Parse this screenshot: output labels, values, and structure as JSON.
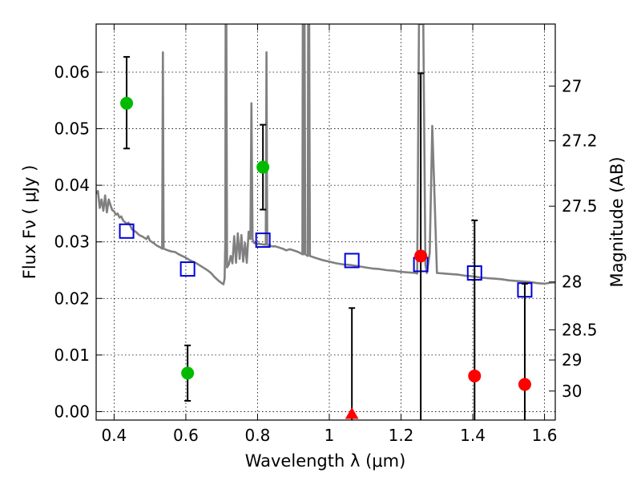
{
  "chart_data": {
    "type": "scatter",
    "xlabel": "Wavelength  λ (μm)",
    "ylabel": "Flux  Fν  ( μJy )",
    "y2label": "Magnitude (AB)",
    "xlim": [
      0.35,
      1.63
    ],
    "ylim": [
      -0.0015,
      0.0685
    ],
    "grid": true,
    "x_ticks": [
      {
        "value": 0.4,
        "label": "0.4"
      },
      {
        "value": 0.6,
        "label": "0.6"
      },
      {
        "value": 0.8,
        "label": "0.8"
      },
      {
        "value": 1.0,
        "label": "1"
      },
      {
        "value": 1.2,
        "label": "1.2"
      },
      {
        "value": 1.4,
        "label": "1.4"
      },
      {
        "value": 1.6,
        "label": "1.6"
      }
    ],
    "y_ticks": [
      {
        "value": 0.0,
        "label": "0.00"
      },
      {
        "value": 0.01,
        "label": "0.01"
      },
      {
        "value": 0.02,
        "label": "0.02"
      },
      {
        "value": 0.03,
        "label": "0.03"
      },
      {
        "value": 0.04,
        "label": "0.04"
      },
      {
        "value": 0.05,
        "label": "0.05"
      },
      {
        "value": 0.06,
        "label": "0.06"
      }
    ],
    "y2_ticks": [
      {
        "mag": 27,
        "label": "27"
      },
      {
        "mag": 27.2,
        "label": "27.2"
      },
      {
        "mag": 27.5,
        "label": "27.5"
      },
      {
        "mag": 28,
        "label": "28"
      },
      {
        "mag": 28.5,
        "label": "28.5"
      },
      {
        "mag": 29,
        "label": "29"
      },
      {
        "mag": 30,
        "label": "30"
      }
    ],
    "series": [
      {
        "kind": "model_spectrum",
        "color": "#808080",
        "points": [
          [
            0.35,
            0.0385
          ],
          [
            0.355,
            0.039
          ],
          [
            0.36,
            0.036
          ],
          [
            0.365,
            0.0375
          ],
          [
            0.37,
            0.0355
          ],
          [
            0.375,
            0.0382
          ],
          [
            0.38,
            0.0352
          ],
          [
            0.385,
            0.0375
          ],
          [
            0.39,
            0.0365
          ],
          [
            0.395,
            0.0356
          ],
          [
            0.4,
            0.0354
          ],
          [
            0.405,
            0.0348
          ],
          [
            0.41,
            0.035
          ],
          [
            0.415,
            0.0343
          ],
          [
            0.42,
            0.0345
          ],
          [
            0.425,
            0.0338
          ],
          [
            0.43,
            0.0335
          ],
          [
            0.435,
            0.0332
          ],
          [
            0.44,
            0.0334
          ],
          [
            0.445,
            0.0329
          ],
          [
            0.45,
            0.0322
          ],
          [
            0.46,
            0.0318
          ],
          [
            0.47,
            0.0312
          ],
          [
            0.48,
            0.0309
          ],
          [
            0.49,
            0.0305
          ],
          [
            0.495,
            0.031
          ],
          [
            0.5,
            0.0302
          ],
          [
            0.51,
            0.0298
          ],
          [
            0.52,
            0.0293
          ],
          [
            0.53,
            0.029
          ],
          [
            0.534,
            0.0288
          ],
          [
            0.536,
            0.0635
          ],
          [
            0.538,
            0.0288
          ],
          [
            0.55,
            0.0285
          ],
          [
            0.56,
            0.0283
          ],
          [
            0.57,
            0.0282
          ],
          [
            0.58,
            0.0278
          ],
          [
            0.59,
            0.0275
          ],
          [
            0.6,
            0.0272
          ],
          [
            0.61,
            0.0268
          ],
          [
            0.62,
            0.0265
          ],
          [
            0.63,
            0.0262
          ],
          [
            0.64,
            0.0258
          ],
          [
            0.65,
            0.0254
          ],
          [
            0.66,
            0.025
          ],
          [
            0.67,
            0.0245
          ],
          [
            0.68,
            0.0238
          ],
          [
            0.69,
            0.0232
          ],
          [
            0.7,
            0.0227
          ],
          [
            0.705,
            0.0225
          ],
          [
            0.708,
            0.0235
          ],
          [
            0.71,
            0.03
          ],
          [
            0.711,
            0.0685
          ],
          [
            0.713,
            0.0685
          ],
          [
            0.715,
            0.0255
          ],
          [
            0.72,
            0.026
          ],
          [
            0.725,
            0.0275
          ],
          [
            0.73,
            0.0262
          ],
          [
            0.735,
            0.031
          ],
          [
            0.74,
            0.0263
          ],
          [
            0.745,
            0.0315
          ],
          [
            0.75,
            0.027
          ],
          [
            0.755,
            0.0312
          ],
          [
            0.76,
            0.0265
          ],
          [
            0.765,
            0.0298
          ],
          [
            0.77,
            0.0263
          ],
          [
            0.775,
            0.0318
          ],
          [
            0.78,
            0.0305
          ],
          [
            0.783,
            0.0545
          ],
          [
            0.786,
            0.0305
          ],
          [
            0.79,
            0.0298
          ],
          [
            0.8,
            0.0297
          ],
          [
            0.81,
            0.0296
          ],
          [
            0.82,
            0.0295
          ],
          [
            0.823,
            0.0295
          ],
          [
            0.825,
            0.0635
          ],
          [
            0.827,
            0.0295
          ],
          [
            0.84,
            0.0292
          ],
          [
            0.85,
            0.0292
          ],
          [
            0.86,
            0.029
          ],
          [
            0.87,
            0.0288
          ],
          [
            0.88,
            0.0285
          ],
          [
            0.89,
            0.0287
          ],
          [
            0.9,
            0.0285
          ],
          [
            0.91,
            0.0283
          ],
          [
            0.92,
            0.028
          ],
          [
            0.925,
            0.0278
          ],
          [
            0.926,
            0.0685
          ],
          [
            0.928,
            0.0278
          ],
          [
            0.93,
            0.028
          ],
          [
            0.931,
            0.0685
          ],
          [
            0.933,
            0.0278
          ],
          [
            0.94,
            0.0275
          ],
          [
            0.941,
            0.0685
          ],
          [
            0.944,
            0.0685
          ],
          [
            0.946,
            0.0275
          ],
          [
            0.96,
            0.0272
          ],
          [
            0.98,
            0.0268
          ],
          [
            1.0,
            0.0265
          ],
          [
            1.02,
            0.0262
          ],
          [
            1.04,
            0.026
          ],
          [
            1.06,
            0.0259
          ],
          [
            1.08,
            0.0257
          ],
          [
            1.1,
            0.0255
          ],
          [
            1.12,
            0.0253
          ],
          [
            1.14,
            0.0252
          ],
          [
            1.16,
            0.025
          ],
          [
            1.18,
            0.0249
          ],
          [
            1.2,
            0.0247
          ],
          [
            1.22,
            0.0246
          ],
          [
            1.24,
            0.0245
          ],
          [
            1.245,
            0.0244
          ],
          [
            1.25,
            0.0685
          ],
          [
            1.262,
            0.0685
          ],
          [
            1.268,
            0.026
          ],
          [
            1.272,
            0.0245
          ],
          [
            1.28,
            0.028
          ],
          [
            1.287,
            0.0505
          ],
          [
            1.295,
            0.035
          ],
          [
            1.3,
            0.0245
          ],
          [
            1.32,
            0.0244
          ],
          [
            1.34,
            0.0243
          ],
          [
            1.36,
            0.0242
          ],
          [
            1.38,
            0.024
          ],
          [
            1.4,
            0.0239
          ],
          [
            1.42,
            0.0237
          ],
          [
            1.44,
            0.0236
          ],
          [
            1.46,
            0.0235
          ],
          [
            1.48,
            0.0234
          ],
          [
            1.5,
            0.0232
          ],
          [
            1.52,
            0.0231
          ],
          [
            1.54,
            0.023
          ],
          [
            1.56,
            0.0229
          ],
          [
            1.58,
            0.0227
          ],
          [
            1.6,
            0.0226
          ],
          [
            1.62,
            0.0228
          ],
          [
            1.63,
            0.0228
          ]
        ]
      },
      {
        "kind": "model_photometry",
        "marker": "open-square",
        "color": "#0000dd",
        "points": [
          [
            0.435,
            0.0319
          ],
          [
            0.605,
            0.0252
          ],
          [
            0.815,
            0.0303
          ],
          [
            1.063,
            0.0267
          ],
          [
            1.255,
            0.026
          ],
          [
            1.405,
            0.0245
          ],
          [
            1.545,
            0.0215
          ]
        ]
      },
      {
        "kind": "detections",
        "marker": "filled-circle",
        "color": "#00bb00",
        "points": [
          {
            "x": 0.435,
            "y": 0.0545,
            "ylo": 0.0465,
            "yhi": 0.0627
          },
          {
            "x": 0.605,
            "y": 0.0068,
            "ylo": 0.0019,
            "yhi": 0.0117
          },
          {
            "x": 0.815,
            "y": 0.0432,
            "ylo": 0.0357,
            "yhi": 0.0507
          }
        ]
      },
      {
        "kind": "non_detections",
        "marker": "filled-circle",
        "color": "#ff0000",
        "points": [
          {
            "x": 1.255,
            "y": 0.0275,
            "ylo": -0.0015,
            "yhi": 0.0598
          },
          {
            "x": 1.405,
            "y": 0.0063,
            "ylo": -0.0015,
            "yhi": 0.0338
          },
          {
            "x": 1.545,
            "y": 0.0048,
            "ylo": -0.0015,
            "yhi": 0.0226
          }
        ]
      },
      {
        "kind": "upper_limit",
        "marker": "filled-triangle",
        "color": "#ff0000",
        "points": [
          {
            "x": 1.063,
            "y": -0.0005,
            "ylo": -0.0015,
            "yhi": 0.0183
          }
        ]
      }
    ]
  }
}
